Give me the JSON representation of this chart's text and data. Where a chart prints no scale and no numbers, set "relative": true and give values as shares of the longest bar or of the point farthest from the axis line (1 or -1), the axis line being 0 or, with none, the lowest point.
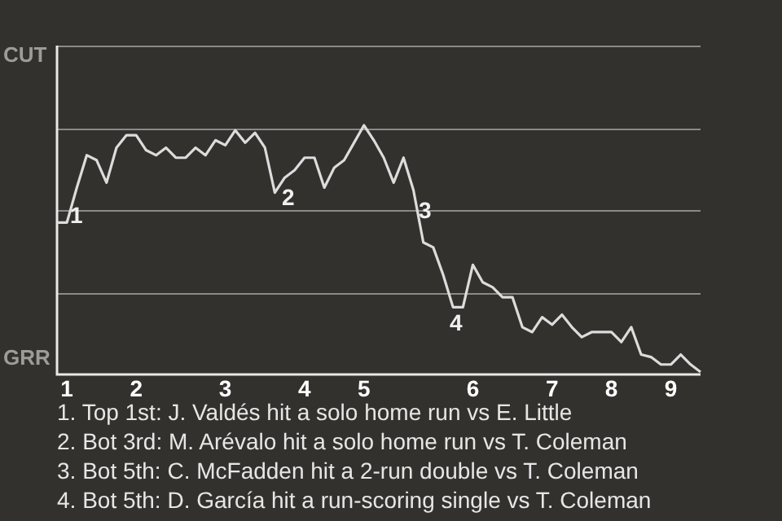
{
  "chart_data": {
    "type": "line",
    "relative": true,
    "categories": [
      null,
      "1",
      null,
      null,
      null,
      null,
      null,
      null,
      "2",
      null,
      null,
      null,
      null,
      null,
      null,
      null,
      null,
      "3",
      null,
      null,
      null,
      null,
      null,
      null,
      null,
      "4",
      null,
      null,
      null,
      null,
      null,
      "5",
      null,
      null,
      null,
      null,
      null,
      null,
      null,
      null,
      null,
      null,
      "6",
      null,
      null,
      null,
      null,
      null,
      null,
      null,
      "7",
      null,
      null,
      null,
      null,
      null,
      "8",
      null,
      null,
      null,
      null,
      null,
      "9",
      null,
      null,
      null
    ],
    "series": [
      {
        "color": "#dcdcdc",
        "values": [
          0.61,
          0.61,
          0.75,
          0.88,
          0.86,
          0.77,
          0.91,
          0.96,
          0.96,
          0.9,
          0.88,
          0.91,
          0.87,
          0.87,
          0.91,
          0.88,
          0.94,
          0.92,
          0.98,
          0.93,
          0.97,
          0.91,
          0.73,
          0.79,
          0.82,
          0.87,
          0.87,
          0.75,
          0.83,
          0.86,
          0.93,
          1,
          0.94,
          0.87,
          0.77,
          0.87,
          0.74,
          0.53,
          0.51,
          0.4,
          0.27,
          0.27,
          0.44,
          0.37,
          0.35,
          0.31,
          0.31,
          0.19,
          0.17,
          0.23,
          0.2,
          0.24,
          0.19,
          0.15,
          0.17,
          0.17,
          0.17,
          0.13,
          0.19,
          0.08,
          0.07,
          0.04,
          0.04,
          0.08,
          0.04,
          0.01
        ]
      }
    ],
    "ref_lines": [
      {
        "axis": "y",
        "value": 0.33,
        "color": "#8a8a88"
      },
      {
        "axis": "y",
        "value": 0.66,
        "color": "#8a8a88"
      },
      {
        "axis": "y",
        "value": 0.99,
        "color": "#8a8a88"
      },
      {
        "axis": "y",
        "value": 1.32,
        "color": "#8a8a88"
      }
    ],
    "annotations": [
      "CUT",
      "GRR",
      "1",
      "2",
      "3",
      "4",
      "1. Top 1st: J. Valdés hit a solo home run vs E. Little",
      "2. Bot 3rd: M. Arévalo hit a solo home run vs T. Coleman",
      "3. Bot 5th: C. McFadden hit a 2-run double vs T. Coleman",
      "4. Bot 5th: D. García hit a run-scoring single vs T. Coleman"
    ]
  }
}
